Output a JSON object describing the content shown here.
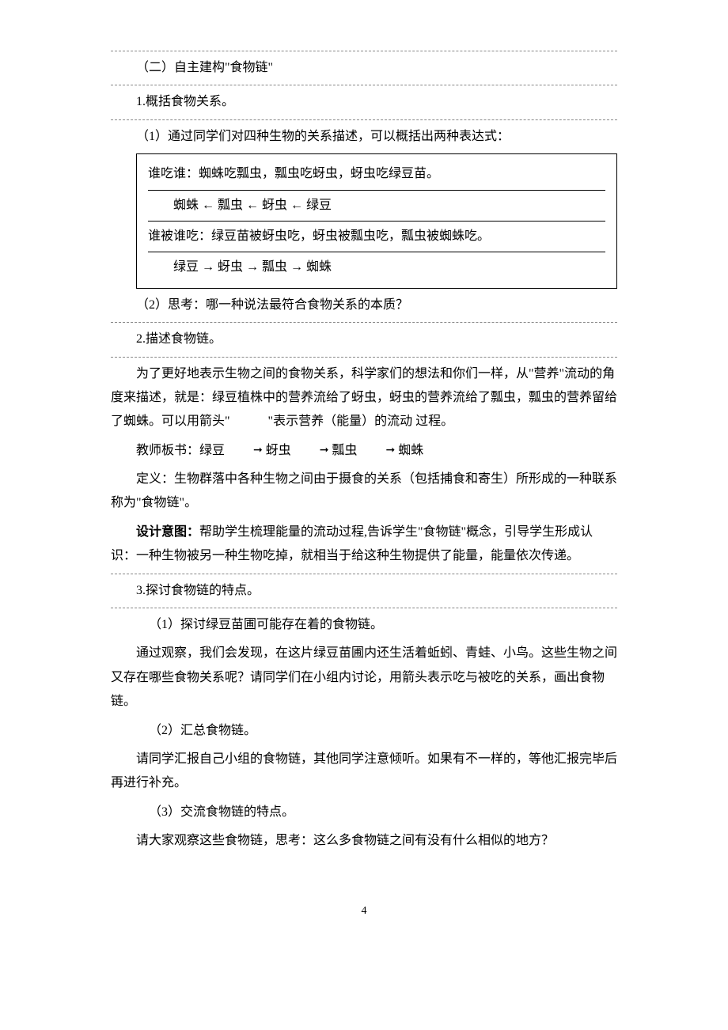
{
  "title_section2": "（二）自主建构\"食物链\"",
  "h1_1": "1.概括食物关系。",
  "p1_1": "（1）通过同学们对四种生物的关系描述，可以概括出两种表达式：",
  "box": {
    "l1": "谁吃谁：蜘蛛吃瓢虫，瓢虫吃蚜虫，蚜虫吃绿豆苗。",
    "chain1": "蜘蛛  ←   瓢虫  ←   蚜虫  ←   绿豆",
    "l2": "谁被谁吃：绿豆苗被蚜虫吃，蚜虫被瓢虫吃，瓢虫被蜘蛛吃。",
    "chain2": "绿豆  →   蚜虫  →   瓢虫 →   蜘蛛"
  },
  "p1_2": "（2）思考：哪一种说法最符合食物关系的本质？",
  "h1_2": "2.描述食物链。",
  "desc_para1": "为了更好地表示生物之间的食物关系，科学家们的想法和你们一样，从\"营养\"流动的角度来描述，就是：绿豆植株中的营养流给了蚜虫，蚜虫的营养流给了瓢虫，瓢虫的营养留给了蜘蛛。可以用箭头\"　　　\"表示营养（能量）的流动 过程。",
  "board_label": "教师板书：",
  "board_items": [
    "绿豆",
    "蚜虫",
    "瓢虫",
    "蜘蛛"
  ],
  "definition": "定义：生物群落中各种生物之间由于摄食的关系（包括捕食和寄生）所形成的一种联系称为\"食物链\"。",
  "design_label": "设计意图：",
  "design_body": "帮助学生梳理能量的流动过程,告诉学生\"食物链\"概念，引导学生形成认识：一种生物被另一种生物吃掉，就相当于给这种生物提供了能量，能量依次传递。",
  "h1_3": "3.探讨食物链的特点。",
  "p3_1": "（1）探讨绿豆苗圃可能存在着的食物链。",
  "p3_1_body": "通过观察，我们会发现，在这片绿豆苗圃内还生活着蚯蚓、青蛙、小鸟。这些生物之间又存在哪些食物关系呢？请同学们在小组内讨论，用箭头表示吃与被吃的关系，画出食物链。",
  "p3_2": "（2）汇总食物链。",
  "p3_2_body": "请同学汇报自己小组的食物链，其他同学注意倾听。如果有不一样的，等他汇报完毕后再进行补充。",
  "p3_3": "（3）交流食物链的特点。",
  "p3_3_body": "请大家观察这些食物链，思考：这么多食物链之间有没有什么相似的地方？",
  "page_number": "4",
  "colors": {
    "text": "#000000",
    "background": "#ffffff",
    "dash": "#888888"
  },
  "arrows": {
    "left": "←",
    "right": "→",
    "right_bold": "➞"
  }
}
